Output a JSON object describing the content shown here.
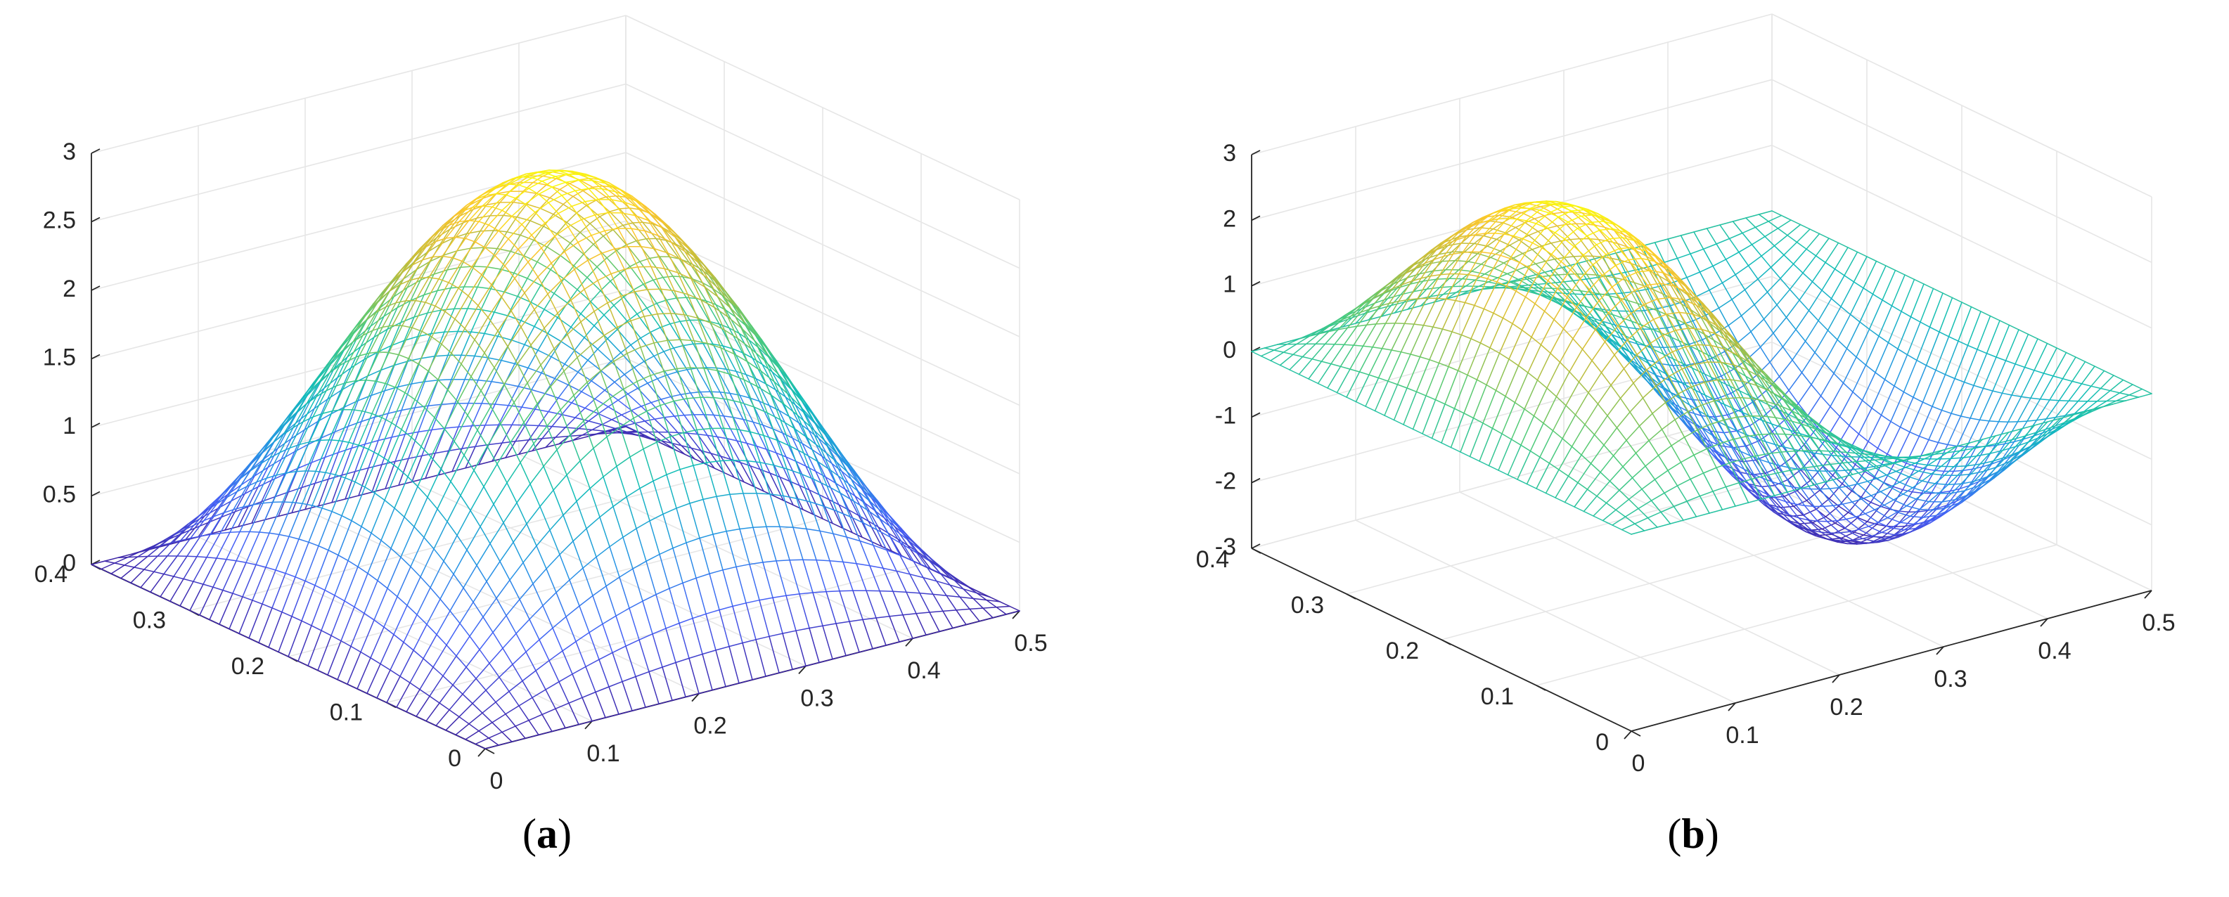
{
  "chart_data": [
    {
      "type": "surface",
      "panel_label": "a",
      "function": "3 sin(πx/0.5) sin(πy/0.4)",
      "x": {
        "range": [
          0,
          0.5
        ],
        "ticks": [
          "0",
          "0.1",
          "0.2",
          "0.3",
          "0.4",
          "0.5"
        ]
      },
      "y": {
        "range": [
          0,
          0.4
        ],
        "ticks": [
          "0",
          "0.1",
          "0.2",
          "0.3",
          "0.4"
        ]
      },
      "z": {
        "range": [
          0,
          3
        ],
        "ticks": [
          "0",
          "0.5",
          "1",
          "1.5",
          "2",
          "2.5",
          "3"
        ]
      },
      "peak": {
        "x": 0.25,
        "y": 0.2,
        "z": 3
      },
      "grid": true,
      "colormap": "parula",
      "mesh": true
    },
    {
      "type": "surface",
      "panel_label": "b",
      "function": "3 sin(2πx/0.5) sin(πy/0.4)",
      "x": {
        "range": [
          0,
          0.5
        ],
        "ticks": [
          "0",
          "0.1",
          "0.2",
          "0.3",
          "0.4",
          "0.5"
        ]
      },
      "y": {
        "range": [
          0,
          0.4
        ],
        "ticks": [
          "0",
          "0.1",
          "0.2",
          "0.3",
          "0.4"
        ]
      },
      "z": {
        "range": [
          -3,
          3
        ],
        "ticks": [
          "-3",
          "-2",
          "-1",
          "0",
          "1",
          "2",
          "3"
        ]
      },
      "peaks": [
        {
          "x": 0.125,
          "y": 0.2,
          "z": 3
        },
        {
          "x": 0.375,
          "y": 0.2,
          "z": -3
        }
      ],
      "grid": true,
      "colormap": "parula",
      "mesh": true
    }
  ]
}
